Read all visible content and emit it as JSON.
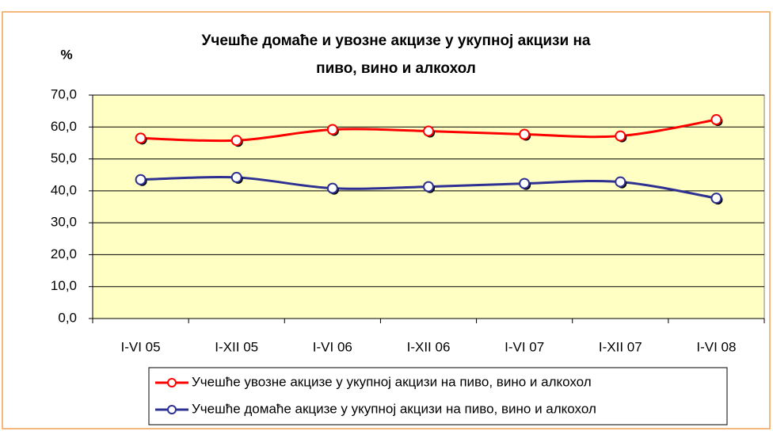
{
  "chart_data": {
    "type": "line",
    "title": "Учешће домаће и увозне акцизе у укупној акцизи на",
    "subtitle": "пиво, вино и алкохол",
    "y_label": "%",
    "categories": [
      "I-VI 05",
      "I-XII 05",
      "I-VI 06",
      "I-XII 06",
      "I-VI 07",
      "I-XII 07",
      "I-VI 08"
    ],
    "series": [
      {
        "name": "Учешће увозне акцизе у укупној акцизи на пиво, вино и алкохол",
        "color": "#ff0000",
        "values": [
          56.5,
          55.8,
          59.2,
          58.7,
          57.7,
          57.2,
          62.3
        ]
      },
      {
        "name": "Учешће домаће акцизе у укупној акцизи на пиво, вино и алкохол",
        "color": "#2e3192",
        "values": [
          43.5,
          44.2,
          40.8,
          41.3,
          42.3,
          42.8,
          37.7
        ]
      }
    ],
    "ylim": [
      0,
      70
    ],
    "yticks": [
      {
        "value": 0,
        "label": "0,0"
      },
      {
        "value": 10,
        "label": "10,0"
      },
      {
        "value": 20,
        "label": "20,0"
      },
      {
        "value": 30,
        "label": "30,0"
      },
      {
        "value": 40,
        "label": "40,0"
      },
      {
        "value": 50,
        "label": "50,0"
      },
      {
        "value": 60,
        "label": "60,0"
      },
      {
        "value": 70,
        "label": "70,0"
      }
    ],
    "grid": true
  }
}
